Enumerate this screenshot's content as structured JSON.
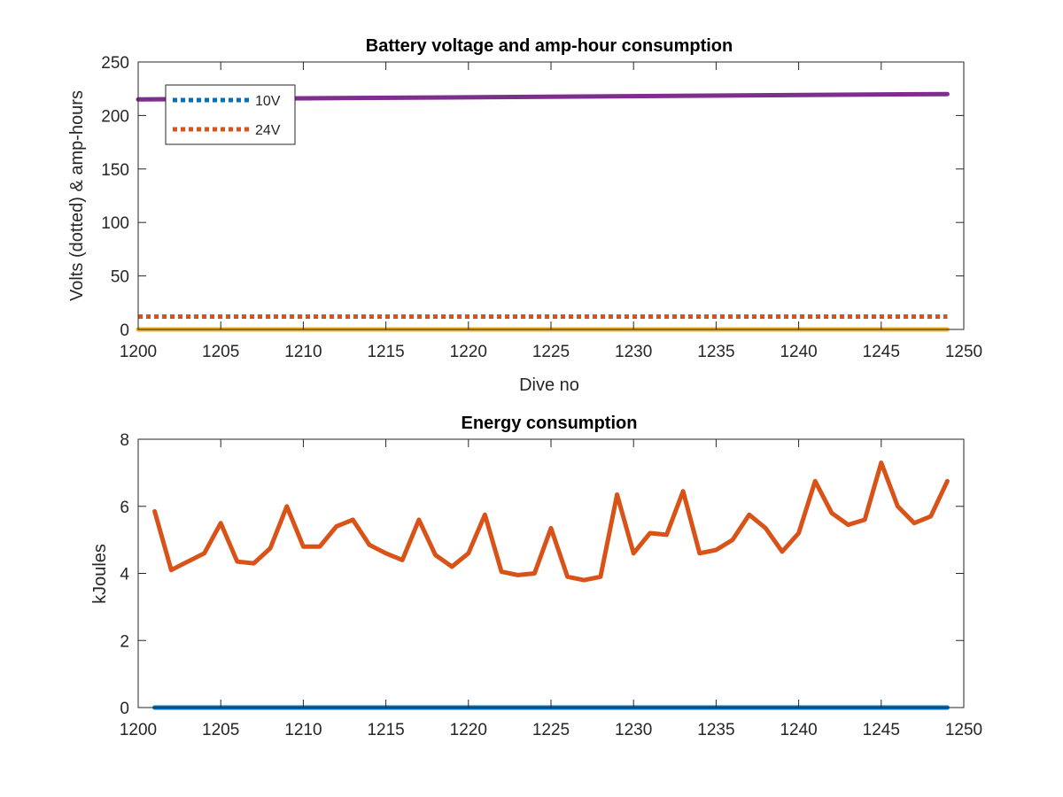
{
  "chart_data": [
    {
      "type": "line",
      "title": "Battery voltage and amp-hour consumption",
      "xlabel": "Dive no",
      "ylabel": "Volts (dotted) & amp-hours",
      "xlim": [
        1200,
        1250
      ],
      "ylim": [
        0,
        250
      ],
      "xticks": [
        1200,
        1205,
        1210,
        1215,
        1220,
        1225,
        1230,
        1235,
        1240,
        1245,
        1250
      ],
      "yticks": [
        0,
        50,
        100,
        150,
        200,
        250
      ],
      "grid": false,
      "legend_position": "top-left",
      "series": [
        {
          "name": "10V",
          "style": "dotted",
          "color": "#0072BD",
          "x": [
            1200,
            1249
          ],
          "y": [
            12,
            12
          ]
        },
        {
          "name": "24V",
          "style": "dotted",
          "color": "#D95319",
          "x": [
            1200,
            1249
          ],
          "y": [
            12,
            12
          ]
        },
        {
          "style": "solid",
          "color": "#EDB120",
          "x": [
            1200,
            1249
          ],
          "y": [
            0,
            0
          ]
        },
        {
          "style": "solid",
          "color": "#7E2F8E",
          "x": [
            1200,
            1249
          ],
          "y": [
            215,
            220
          ]
        }
      ]
    },
    {
      "type": "line",
      "title": "Energy consumption",
      "xlabel": "",
      "ylabel": "kJoules",
      "xlim": [
        1200,
        1250
      ],
      "ylim": [
        0,
        8
      ],
      "xticks": [
        1200,
        1205,
        1210,
        1215,
        1220,
        1225,
        1230,
        1235,
        1240,
        1245,
        1250
      ],
      "yticks": [
        0,
        2,
        4,
        6,
        8
      ],
      "grid": false,
      "series": [
        {
          "style": "solid",
          "color": "#0072BD",
          "x": [
            1201,
            1249
          ],
          "y": [
            0,
            0
          ]
        },
        {
          "style": "solid",
          "color": "#D95319",
          "x": [
            1201,
            1202,
            1203,
            1204,
            1205,
            1206,
            1207,
            1208,
            1209,
            1210,
            1211,
            1212,
            1213,
            1214,
            1215,
            1216,
            1217,
            1218,
            1219,
            1220,
            1221,
            1222,
            1223,
            1224,
            1225,
            1226,
            1227,
            1228,
            1229,
            1230,
            1231,
            1232,
            1233,
            1234,
            1235,
            1236,
            1237,
            1238,
            1239,
            1240,
            1241,
            1242,
            1243,
            1244,
            1245,
            1246,
            1247,
            1248,
            1249
          ],
          "y": [
            5.85,
            4.1,
            4.35,
            4.6,
            5.5,
            4.35,
            4.3,
            4.75,
            6.0,
            4.8,
            4.8,
            5.4,
            5.6,
            4.85,
            4.6,
            4.4,
            5.6,
            4.55,
            4.2,
            4.6,
            5.75,
            4.05,
            3.95,
            4.0,
            5.35,
            3.9,
            3.8,
            3.9,
            6.35,
            4.6,
            5.2,
            5.15,
            6.45,
            4.6,
            4.7,
            5.0,
            5.75,
            5.35,
            4.65,
            5.2,
            6.75,
            5.8,
            5.45,
            5.6,
            7.3,
            6.0,
            5.5,
            5.7,
            6.75
          ]
        }
      ]
    }
  ]
}
